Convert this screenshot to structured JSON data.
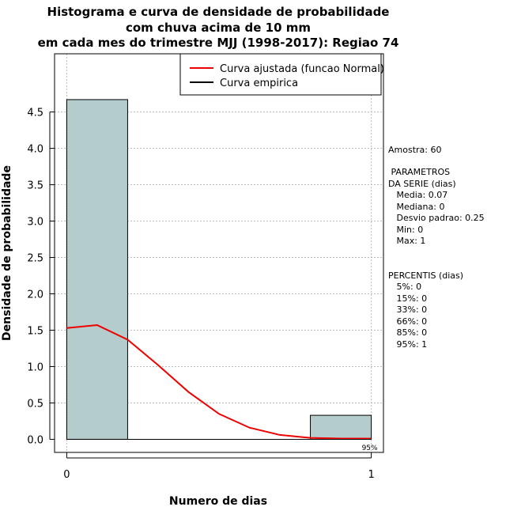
{
  "chart_data": {
    "type": "bar",
    "title_lines": [
      "Histograma e curva de densidade de probabilidade",
      "com chuva acima de 10 mm",
      "em cada mes do trimestre MJJ (1998-2017): Regiao 74"
    ],
    "xlabel": "Numero de dias",
    "ylabel": "Densidade de probabilidade",
    "xlim": [
      -0.04,
      1.04
    ],
    "ylim": [
      -0.18,
      5.3
    ],
    "x_ticks": [
      0,
      1
    ],
    "y_ticks": [
      0.0,
      0.5,
      1.0,
      1.5,
      2.0,
      2.5,
      3.0,
      3.5,
      4.0,
      4.5
    ],
    "y_tick_labels": [
      "0.0",
      "0.5",
      "1.0",
      "1.5",
      "2.0",
      "2.5",
      "3.0",
      "3.5",
      "4.0",
      "4.5"
    ],
    "bars": [
      {
        "x0": 0.0,
        "x1": 0.2,
        "value": 4.67
      },
      {
        "x0": 0.8,
        "x1": 1.0,
        "value": 0.33
      }
    ],
    "bar_color": "#b5cccc",
    "grid": true,
    "series": [
      {
        "name": "Curva ajustada (funcao Normal)",
        "color": "#ee0000",
        "x": [
          0.0,
          0.1,
          0.2,
          0.3,
          0.4,
          0.5,
          0.6,
          0.7,
          0.8,
          0.9,
          1.0
        ],
        "y": [
          1.53,
          1.57,
          1.37,
          1.02,
          0.65,
          0.35,
          0.16,
          0.06,
          0.02,
          0.01,
          0.01
        ]
      },
      {
        "name": "Curva empirica",
        "color": "#000000",
        "x": [
          0.0,
          1.0
        ],
        "y": [
          0.0,
          0.0
        ]
      }
    ],
    "legend_position": "top-right",
    "percentile_marker": {
      "x": 1.0,
      "label": "95%"
    },
    "side_text": [
      "Amostra: 60",
      " PARAMETROS",
      "DA SERIE (dias)",
      "   Media: 0.07",
      "   Mediana: 0",
      "   Desvio padrao: 0.25",
      "   Min: 0",
      "   Max: 1",
      "PERCENTIS (dias)",
      "   5%: 0",
      "   15%: 0",
      "   33%: 0",
      "   66%: 0",
      "   85%: 0",
      "   95%: 1"
    ]
  }
}
